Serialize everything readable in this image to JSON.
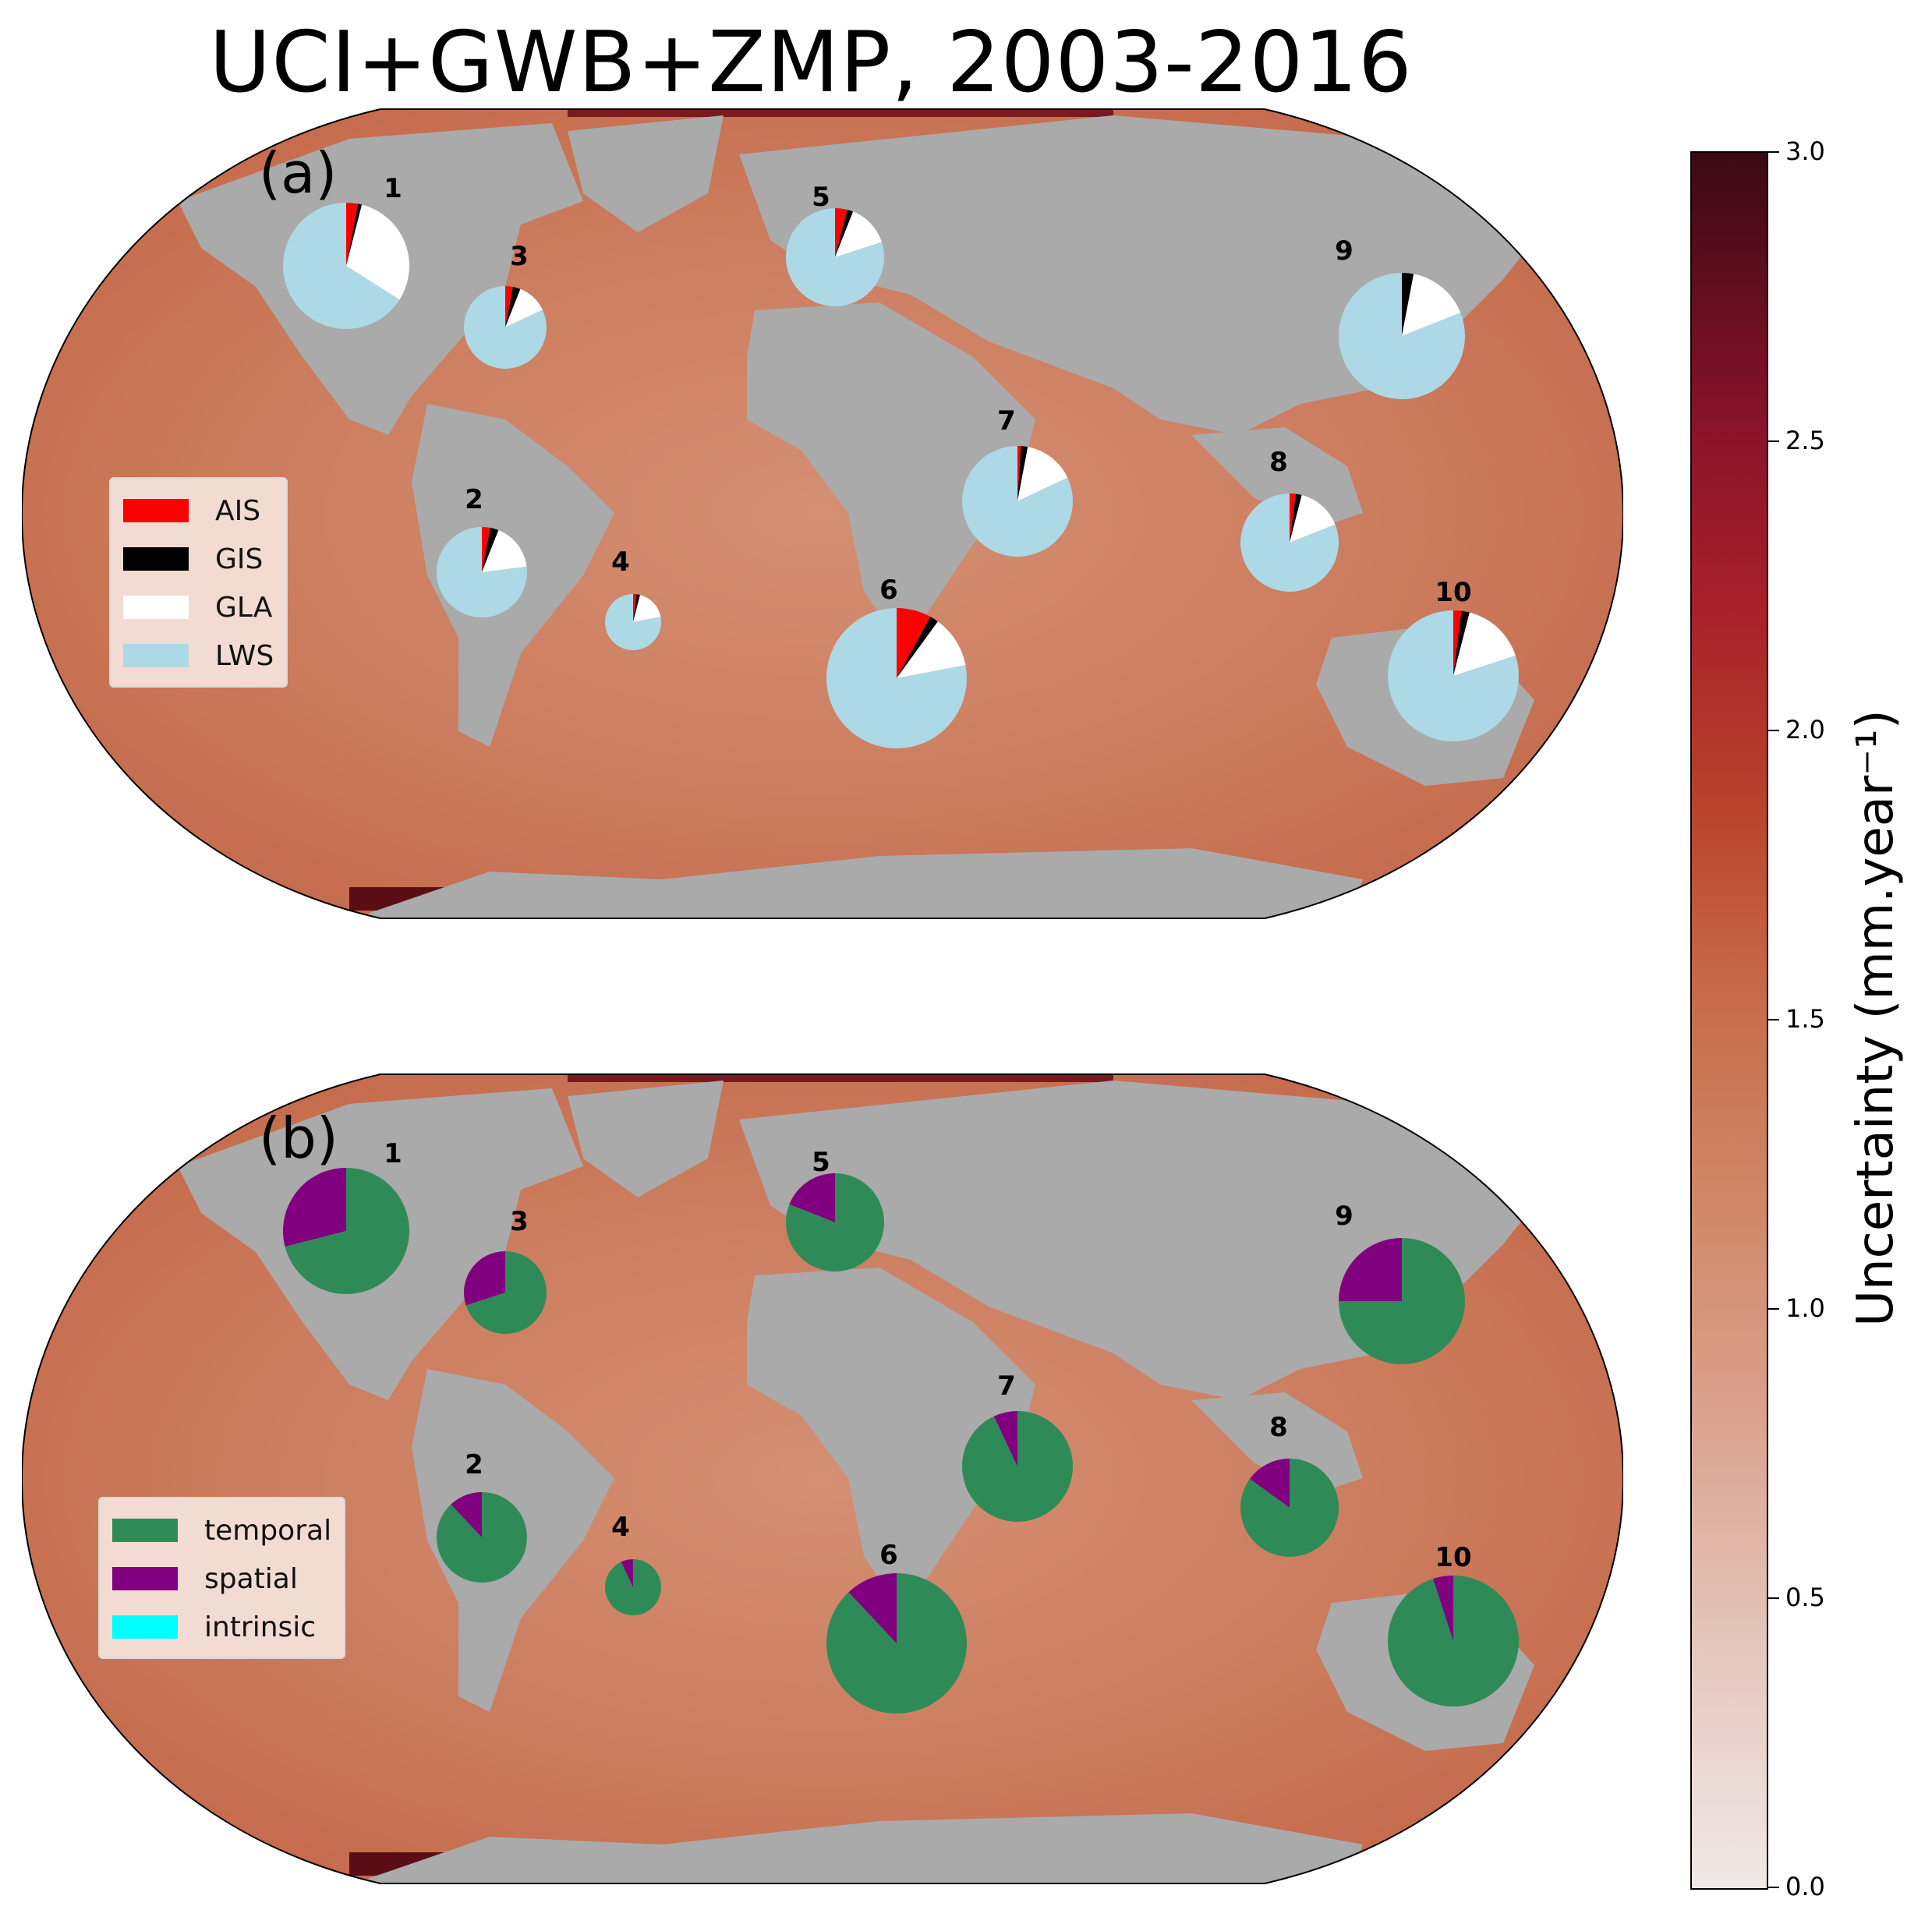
{
  "title": "UCI+GWB+ZMP, 2003-2016",
  "panels": [
    {
      "label": "(a)",
      "legend": [
        {
          "name": "AIS",
          "color": "#ff0000"
        },
        {
          "name": "GIS",
          "color": "#000000"
        },
        {
          "name": "GLA",
          "color": "#ffffff"
        },
        {
          "name": "LWS",
          "color": "#add8e6"
        }
      ],
      "pies": [
        {
          "id": "1",
          "parts": [
            0.03,
            0.01,
            0.3,
            0.66
          ]
        },
        {
          "id": "2",
          "parts": [
            0.03,
            0.03,
            0.17,
            0.77
          ]
        },
        {
          "id": "3",
          "parts": [
            0.03,
            0.03,
            0.12,
            0.82
          ]
        },
        {
          "id": "4",
          "parts": [
            0.02,
            0.02,
            0.18,
            0.78
          ]
        },
        {
          "id": "5",
          "parts": [
            0.04,
            0.02,
            0.14,
            0.8
          ]
        },
        {
          "id": "6",
          "parts": [
            0.08,
            0.02,
            0.12,
            0.78
          ]
        },
        {
          "id": "7",
          "parts": [
            0.01,
            0.02,
            0.15,
            0.82
          ]
        },
        {
          "id": "8",
          "parts": [
            0.02,
            0.02,
            0.15,
            0.81
          ]
        },
        {
          "id": "9",
          "parts": [
            0.0,
            0.03,
            0.16,
            0.81
          ]
        },
        {
          "id": "10",
          "parts": [
            0.02,
            0.02,
            0.16,
            0.8
          ]
        }
      ]
    },
    {
      "label": "(b)",
      "legend": [
        {
          "name": "temporal",
          "color": "#2e8b57"
        },
        {
          "name": "spatial",
          "color": "#800080"
        },
        {
          "name": "intrinsic",
          "color": "#00ffff"
        }
      ],
      "pies": [
        {
          "id": "1",
          "parts": [
            0.71,
            0.29,
            0.0
          ]
        },
        {
          "id": "2",
          "parts": [
            0.88,
            0.12,
            0.0
          ]
        },
        {
          "id": "3",
          "parts": [
            0.7,
            0.3,
            0.0
          ]
        },
        {
          "id": "4",
          "parts": [
            0.93,
            0.07,
            0.0
          ]
        },
        {
          "id": "5",
          "parts": [
            0.81,
            0.19,
            0.0
          ]
        },
        {
          "id": "6",
          "parts": [
            0.88,
            0.12,
            0.0
          ]
        },
        {
          "id": "7",
          "parts": [
            0.93,
            0.07,
            0.0
          ]
        },
        {
          "id": "8",
          "parts": [
            0.85,
            0.15,
            0.0
          ]
        },
        {
          "id": "9",
          "parts": [
            0.75,
            0.25,
            0.0
          ]
        },
        {
          "id": "10",
          "parts": [
            0.95,
            0.05,
            0.0
          ]
        }
      ]
    }
  ],
  "colorbar": {
    "label": "Uncertainty (mm.year⁻¹)",
    "range": [
      0.0,
      3.0
    ],
    "ticks": [
      "0.0",
      "0.5",
      "1.0",
      "1.5",
      "2.0",
      "2.5",
      "3.0"
    ],
    "cmap": "reds"
  },
  "colors": {
    "land": "#aaaaaa",
    "ocean": "#c97456"
  }
}
